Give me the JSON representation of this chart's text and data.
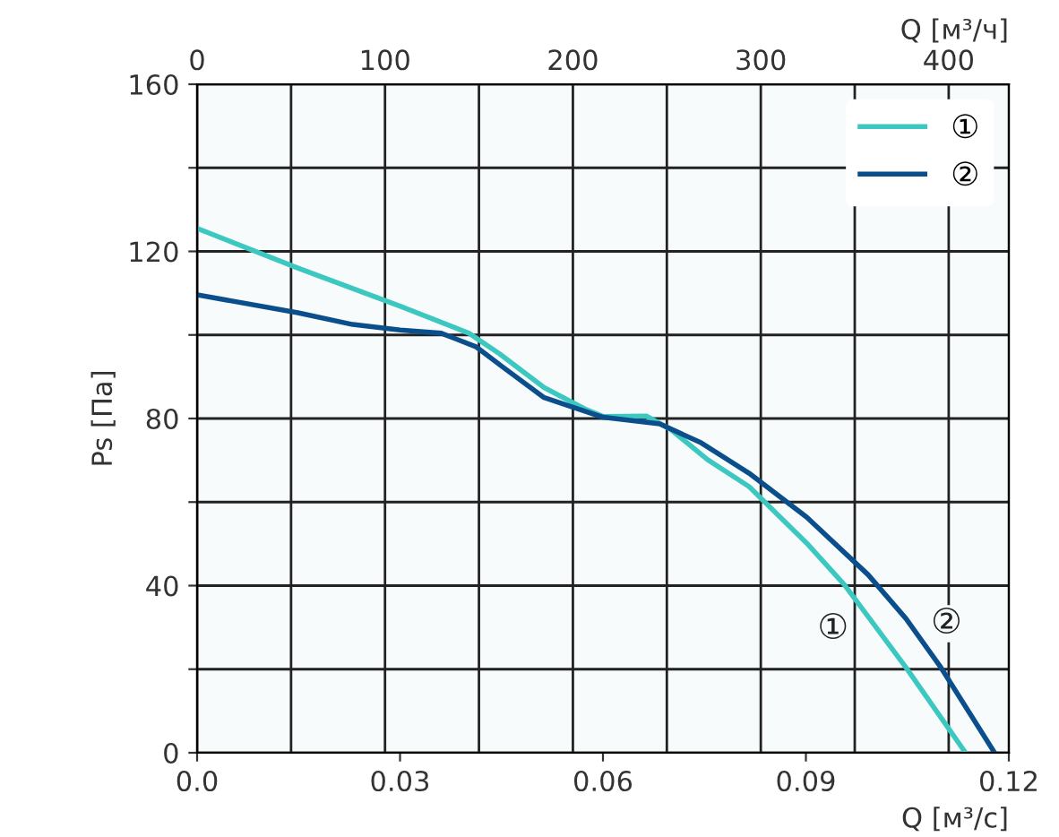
{
  "chart_data": {
    "type": "line",
    "xlabel": "Q [м³/с]",
    "ylabel": "Ps [Па]",
    "x2label": "Q [м³/ч]",
    "xlim": [
      0,
      0.12
    ],
    "xticks": [
      {
        "value": 0,
        "label": "0.0"
      },
      0.03,
      0.06,
      0.09,
      0.12
    ],
    "x2lim": [
      0,
      432
    ],
    "x2ticks": [
      0,
      {
        "value": 50,
        "label": null
      },
      100,
      {
        "value": 150,
        "label": null
      },
      200,
      {
        "value": 250,
        "label": null
      },
      300,
      {
        "value": 350,
        "label": null
      },
      400
    ],
    "ylim": [
      0,
      160
    ],
    "yticks": [
      0,
      {
        "value": 20,
        "label": null
      },
      40,
      {
        "value": 60,
        "label": null
      },
      80,
      {
        "value": 100,
        "label": null
      },
      120,
      {
        "value": 140,
        "label": null
      },
      160
    ],
    "grid": true,
    "legend": "top right",
    "marker": "none",
    "line_style": "solid",
    "series": [
      {
        "name": "①",
        "color": "#3cc8c0",
        "x": [
          0,
          0.0149,
          0.03,
          0.0402,
          0.0447,
          0.0513,
          0.0573,
          0.06,
          0.0664,
          0.07,
          0.0755,
          0.0816,
          0.0901,
          0.0957,
          0.1048,
          0.1136
        ],
        "values": [
          125.5,
          116,
          106.9,
          100.4,
          95.5,
          87.4,
          82.3,
          80.5,
          80.6,
          77.4,
          70.1,
          63.7,
          50.2,
          40.2,
          20.4,
          0
        ]
      },
      {
        "name": "②",
        "color": "#0a4f8c",
        "x": [
          0,
          0.0149,
          0.023,
          0.03,
          0.0361,
          0.0412,
          0.0452,
          0.0513,
          0.06,
          0.0684,
          0.0745,
          0.0816,
          0.0901,
          0.0992,
          0.1048,
          0.1098,
          0.1179
        ],
        "values": [
          109.6,
          105.3,
          102.5,
          101.2,
          100.4,
          97.2,
          92.3,
          85.0,
          80.3,
          78.7,
          74.2,
          66.9,
          56.4,
          42.6,
          32.1,
          20.8,
          0
        ]
      }
    ],
    "annotations": [
      {
        "text": "①",
        "x": 0.1,
        "y": 30.8
      },
      {
        "text": "②",
        "x": 0.1048,
        "y": 32.1
      }
    ]
  }
}
